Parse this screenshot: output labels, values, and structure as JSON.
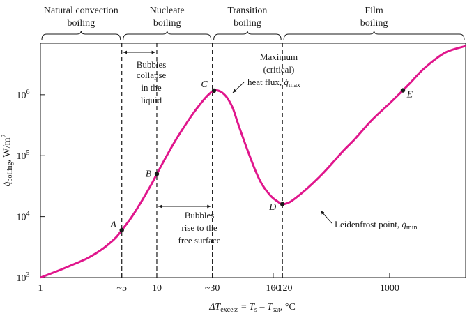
{
  "chart_data": {
    "type": "line",
    "x_scale": "log",
    "y_scale": "log",
    "xlim": [
      1,
      4500
    ],
    "ylim": [
      1000,
      7000000
    ],
    "xlabel": {
      "delta": "ΔT",
      "sub1": "excess",
      "eq": " = ",
      "ts": "T",
      "ts_sub": "s",
      "minus": " – ",
      "tsat": "T",
      "tsat_sub": "sat",
      "unit": ", °C"
    },
    "ylabel": {
      "q": "q̇",
      "sub": "boiling",
      "unit": ", W/m",
      "sup": "2"
    },
    "x_ticks": [
      {
        "value": 1,
        "label": "1"
      },
      {
        "value": 5,
        "label": "~5"
      },
      {
        "value": 10,
        "label": "10"
      },
      {
        "value": 30,
        "label": "~30"
      },
      {
        "value": 100,
        "label": "100"
      },
      {
        "value": 120,
        "label": "~120"
      },
      {
        "value": 1000,
        "label": "1000"
      }
    ],
    "y_ticks": [
      {
        "value": 1000,
        "base": "10",
        "exp": "3"
      },
      {
        "value": 10000,
        "base": "10",
        "exp": "4"
      },
      {
        "value": 100000,
        "base": "10",
        "exp": "5"
      },
      {
        "value": 1000000,
        "base": "10",
        "exp": "6"
      }
    ],
    "series": [
      {
        "color": "#e0168c",
        "points": [
          [
            1,
            1000
          ],
          [
            1.5,
            1350
          ],
          [
            2,
            1700
          ],
          [
            2.5,
            2050
          ],
          [
            3,
            2500
          ],
          [
            3.5,
            3050
          ],
          [
            4,
            3750
          ],
          [
            4.5,
            4650
          ],
          [
            5,
            6000
          ],
          [
            6,
            9500
          ],
          [
            7,
            15000
          ],
          [
            8,
            23000
          ],
          [
            9,
            34000
          ],
          [
            10,
            50000
          ],
          [
            12,
            95000
          ],
          [
            14,
            160000
          ],
          [
            17,
            290000
          ],
          [
            20,
            460000
          ],
          [
            23,
            660000
          ],
          [
            26,
            880000
          ],
          [
            29,
            1080000
          ],
          [
            31,
            1170000
          ],
          [
            33,
            1180000
          ],
          [
            36,
            1100000
          ],
          [
            40,
            900000
          ],
          [
            45,
            600000
          ],
          [
            50,
            330000
          ],
          [
            60,
            125000
          ],
          [
            70,
            58000
          ],
          [
            80,
            34000
          ],
          [
            95,
            22000
          ],
          [
            110,
            17500
          ],
          [
            120,
            16000
          ],
          [
            140,
            17500
          ],
          [
            170,
            23000
          ],
          [
            200,
            30000
          ],
          [
            250,
            45000
          ],
          [
            300,
            65000
          ],
          [
            400,
            120000
          ],
          [
            500,
            185000
          ],
          [
            700,
            380000
          ],
          [
            1000,
            720000
          ],
          [
            1300,
            1180000
          ],
          [
            1500,
            1550000
          ],
          [
            2000,
            2750000
          ],
          [
            3000,
            4900000
          ],
          [
            4500,
            6300000
          ]
        ]
      }
    ],
    "points": [
      {
        "label": "A",
        "x": 5,
        "y": 6000
      },
      {
        "label": "B",
        "x": 10,
        "y": 50000
      },
      {
        "label": "C",
        "x": 31,
        "y": 1170000
      },
      {
        "label": "D",
        "x": 120,
        "y": 16000
      },
      {
        "label": "E",
        "x": 1300,
        "y": 1180000
      }
    ],
    "regions": [
      {
        "line1": "Natural convection",
        "line2": "boiling",
        "from": 1,
        "to": 5
      },
      {
        "line1": "Nucleate",
        "line2": "boiling",
        "from": 5,
        "to": 30
      },
      {
        "line1": "Transition",
        "line2": "boiling",
        "from": 30,
        "to": 120
      },
      {
        "line1": "Film",
        "line2": "boiling",
        "from": 120,
        "to": 4500
      }
    ],
    "dashed_lines_x": [
      5,
      10,
      30,
      120
    ],
    "annotations": {
      "bubbles_collapse": [
        "Bubbles",
        "collapse",
        "in the",
        "liquid"
      ],
      "bubbles_rise": [
        "Bubbles",
        "rise to the",
        "free surface"
      ],
      "maximum": {
        "line1": "Maximum",
        "line2": "(critical)",
        "line3": "heat flux, ",
        "q": "q̇",
        "sub": "max"
      },
      "leidenfrost": {
        "text": "Leidenfrost point, ",
        "q": "q̇",
        "sub": "min"
      }
    }
  }
}
